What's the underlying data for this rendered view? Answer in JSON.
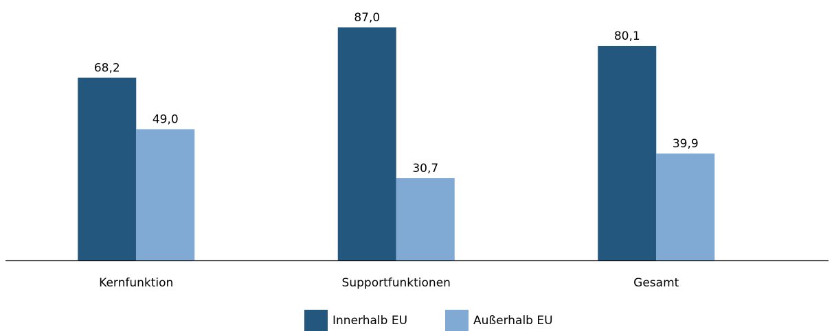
{
  "chart_data": {
    "type": "bar",
    "categories": [
      "Kernfunktion",
      "Supportfunktionen",
      "Gesamt"
    ],
    "series": [
      {
        "name": "Innerhalb EU",
        "color": "#24577d",
        "values": [
          68.2,
          87.0,
          80.1
        ],
        "value_labels": [
          "68,2",
          "87,0",
          "80,1"
        ]
      },
      {
        "name": "Außerhalb EU",
        "color": "#80aad4",
        "values": [
          49.0,
          30.7,
          39.9
        ],
        "value_labels": [
          "49,0",
          "30,7",
          "39,9"
        ]
      }
    ]
  }
}
